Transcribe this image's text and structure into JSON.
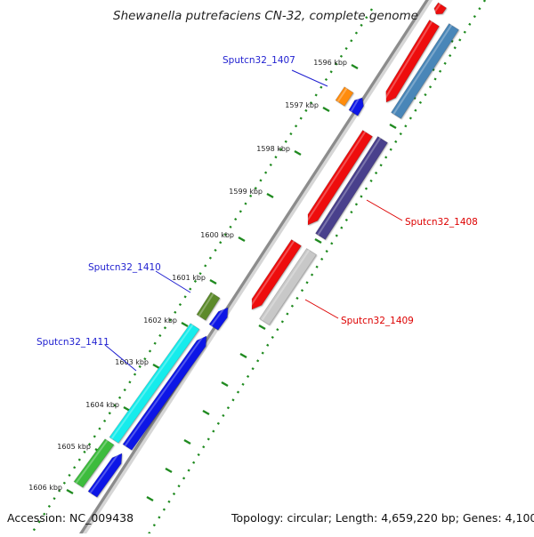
{
  "title": "Shewanella putrefaciens CN-32, complete genome",
  "footer": {
    "accession": "Accession: NC_009438",
    "summary": "Topology: circular; Length: 4,659,220 bp; Genes: 4,100"
  },
  "ticks": [
    {
      "label": "1596 kbp"
    },
    {
      "label": "1597 kbp"
    },
    {
      "label": "1598 kbp"
    },
    {
      "label": "1599 kbp"
    },
    {
      "label": "1600 kbp"
    },
    {
      "label": "1601 kbp"
    },
    {
      "label": "1602 kbp"
    },
    {
      "label": "1603 kbp"
    },
    {
      "label": "1604 kbp"
    },
    {
      "label": "1605 kbp"
    },
    {
      "label": "1606 kbp"
    }
  ],
  "gene_labels": {
    "g1407": "Sputcn32_1407",
    "g1408": "Sputcn32_1408",
    "g1409": "Sputcn32_1409",
    "g1410": "Sputcn32_1410",
    "g1411": "Sputcn32_1411"
  },
  "colors": {
    "label_blue": "#1f1fd0",
    "label_red": "#dd0000",
    "backbone": "#9a9a9a",
    "tick_green": "#1f8a1f",
    "cds_red": "#ee1111",
    "cds_blue": "#0a14e6",
    "cds_steelblue": "#4a86b8",
    "cds_indigo": "#4a3f8c",
    "cds_silver": "#c8c8c8",
    "cds_orange": "#ff8c11",
    "cds_olive": "#5b8a2a",
    "cds_cyan": "#19ecec",
    "cds_green": "#3cbc3c"
  }
}
